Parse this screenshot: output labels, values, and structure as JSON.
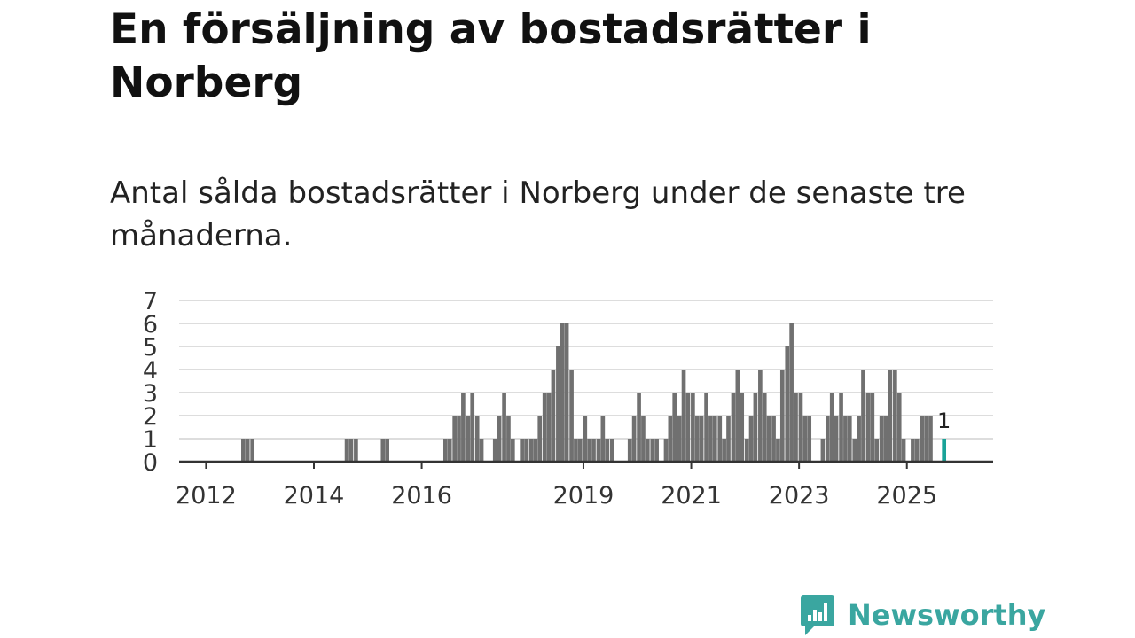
{
  "title": "En försäljning av bostadsrätter i Norberg",
  "subtitle": "Antal sålda bostadsrätter i Norberg under de senaste tre månaderna.",
  "brand": {
    "name": "Newsworthy"
  },
  "colors": {
    "bar": "#707070",
    "highlight": "#1aa398",
    "grid": "#dddddd",
    "axis": "#333333",
    "brand": "#3aa6a0"
  },
  "chart_data": {
    "type": "bar",
    "title": "En försäljning av bostadsrätter i Norberg",
    "subtitle": "Antal sålda bostadsrätter i Norberg under de senaste tre månaderna.",
    "xlabel": "",
    "ylabel": "",
    "ylim": [
      0,
      7
    ],
    "yticks": [
      0,
      1,
      2,
      3,
      4,
      5,
      6,
      7
    ],
    "xlim": [
      2011.5,
      2026.6
    ],
    "xticks": [
      {
        "label": "2012",
        "value": 2012.0
      },
      {
        "label": "2014",
        "value": 2014.0
      },
      {
        "label": "2016",
        "value": 2016.0
      },
      {
        "label": "2019",
        "value": 2019.0
      },
      {
        "label": "2021",
        "value": 2021.0
      },
      {
        "label": "2023",
        "value": 2023.0
      },
      {
        "label": "2025",
        "value": 2025.0
      }
    ],
    "grid": true,
    "bars": [
      {
        "x": 2012.69,
        "value": 1
      },
      {
        "x": 2012.77,
        "value": 1
      },
      {
        "x": 2012.86,
        "value": 1
      },
      {
        "x": 2014.61,
        "value": 1
      },
      {
        "x": 2014.69,
        "value": 1
      },
      {
        "x": 2014.78,
        "value": 1
      },
      {
        "x": 2015.28,
        "value": 1
      },
      {
        "x": 2015.36,
        "value": 1
      },
      {
        "x": 2016.44,
        "value": 1
      },
      {
        "x": 2016.52,
        "value": 1
      },
      {
        "x": 2016.61,
        "value": 2
      },
      {
        "x": 2016.69,
        "value": 2
      },
      {
        "x": 2016.77,
        "value": 3
      },
      {
        "x": 2016.86,
        "value": 2
      },
      {
        "x": 2016.94,
        "value": 3
      },
      {
        "x": 2017.03,
        "value": 2
      },
      {
        "x": 2017.11,
        "value": 1
      },
      {
        "x": 2017.36,
        "value": 1
      },
      {
        "x": 2017.44,
        "value": 2
      },
      {
        "x": 2017.53,
        "value": 3
      },
      {
        "x": 2017.61,
        "value": 2
      },
      {
        "x": 2017.69,
        "value": 1
      },
      {
        "x": 2017.86,
        "value": 1
      },
      {
        "x": 2017.94,
        "value": 1
      },
      {
        "x": 2018.03,
        "value": 1
      },
      {
        "x": 2018.11,
        "value": 1
      },
      {
        "x": 2018.19,
        "value": 2
      },
      {
        "x": 2018.28,
        "value": 3
      },
      {
        "x": 2018.36,
        "value": 3
      },
      {
        "x": 2018.44,
        "value": 4
      },
      {
        "x": 2018.53,
        "value": 5
      },
      {
        "x": 2018.61,
        "value": 6
      },
      {
        "x": 2018.69,
        "value": 6
      },
      {
        "x": 2018.78,
        "value": 4
      },
      {
        "x": 2018.86,
        "value": 1
      },
      {
        "x": 2018.94,
        "value": 1
      },
      {
        "x": 2019.03,
        "value": 2
      },
      {
        "x": 2019.11,
        "value": 1
      },
      {
        "x": 2019.19,
        "value": 1
      },
      {
        "x": 2019.28,
        "value": 1
      },
      {
        "x": 2019.36,
        "value": 2
      },
      {
        "x": 2019.44,
        "value": 1
      },
      {
        "x": 2019.53,
        "value": 1
      },
      {
        "x": 2019.86,
        "value": 1
      },
      {
        "x": 2019.94,
        "value": 2
      },
      {
        "x": 2020.03,
        "value": 3
      },
      {
        "x": 2020.11,
        "value": 2
      },
      {
        "x": 2020.19,
        "value": 1
      },
      {
        "x": 2020.28,
        "value": 1
      },
      {
        "x": 2020.36,
        "value": 1
      },
      {
        "x": 2020.53,
        "value": 1
      },
      {
        "x": 2020.61,
        "value": 2
      },
      {
        "x": 2020.69,
        "value": 3
      },
      {
        "x": 2020.78,
        "value": 2
      },
      {
        "x": 2020.86,
        "value": 4
      },
      {
        "x": 2020.94,
        "value": 3
      },
      {
        "x": 2021.03,
        "value": 3
      },
      {
        "x": 2021.11,
        "value": 2
      },
      {
        "x": 2021.19,
        "value": 2
      },
      {
        "x": 2021.28,
        "value": 3
      },
      {
        "x": 2021.36,
        "value": 2
      },
      {
        "x": 2021.44,
        "value": 2
      },
      {
        "x": 2021.53,
        "value": 2
      },
      {
        "x": 2021.61,
        "value": 1
      },
      {
        "x": 2021.69,
        "value": 2
      },
      {
        "x": 2021.78,
        "value": 3
      },
      {
        "x": 2021.86,
        "value": 4
      },
      {
        "x": 2021.94,
        "value": 3
      },
      {
        "x": 2022.03,
        "value": 1
      },
      {
        "x": 2022.11,
        "value": 2
      },
      {
        "x": 2022.19,
        "value": 3
      },
      {
        "x": 2022.28,
        "value": 4
      },
      {
        "x": 2022.36,
        "value": 3
      },
      {
        "x": 2022.44,
        "value": 2
      },
      {
        "x": 2022.53,
        "value": 2
      },
      {
        "x": 2022.61,
        "value": 1
      },
      {
        "x": 2022.69,
        "value": 4
      },
      {
        "x": 2022.78,
        "value": 5
      },
      {
        "x": 2022.86,
        "value": 6
      },
      {
        "x": 2022.94,
        "value": 3
      },
      {
        "x": 2023.03,
        "value": 3
      },
      {
        "x": 2023.11,
        "value": 2
      },
      {
        "x": 2023.19,
        "value": 2
      },
      {
        "x": 2023.44,
        "value": 1
      },
      {
        "x": 2023.53,
        "value": 2
      },
      {
        "x": 2023.61,
        "value": 3
      },
      {
        "x": 2023.69,
        "value": 2
      },
      {
        "x": 2023.78,
        "value": 3
      },
      {
        "x": 2023.86,
        "value": 2
      },
      {
        "x": 2023.94,
        "value": 2
      },
      {
        "x": 2024.03,
        "value": 1
      },
      {
        "x": 2024.11,
        "value": 2
      },
      {
        "x": 2024.19,
        "value": 4
      },
      {
        "x": 2024.28,
        "value": 3
      },
      {
        "x": 2024.36,
        "value": 3
      },
      {
        "x": 2024.44,
        "value": 1
      },
      {
        "x": 2024.53,
        "value": 2
      },
      {
        "x": 2024.61,
        "value": 2
      },
      {
        "x": 2024.69,
        "value": 4
      },
      {
        "x": 2024.78,
        "value": 4
      },
      {
        "x": 2024.86,
        "value": 3
      },
      {
        "x": 2024.94,
        "value": 1
      },
      {
        "x": 2025.11,
        "value": 1
      },
      {
        "x": 2025.19,
        "value": 1
      },
      {
        "x": 2025.28,
        "value": 2
      },
      {
        "x": 2025.36,
        "value": 2
      },
      {
        "x": 2025.44,
        "value": 2
      },
      {
        "x": 2025.69,
        "value": 1,
        "highlight": true
      }
    ],
    "annotations": [
      {
        "x": 2025.69,
        "value": 1,
        "text": "1"
      }
    ]
  }
}
